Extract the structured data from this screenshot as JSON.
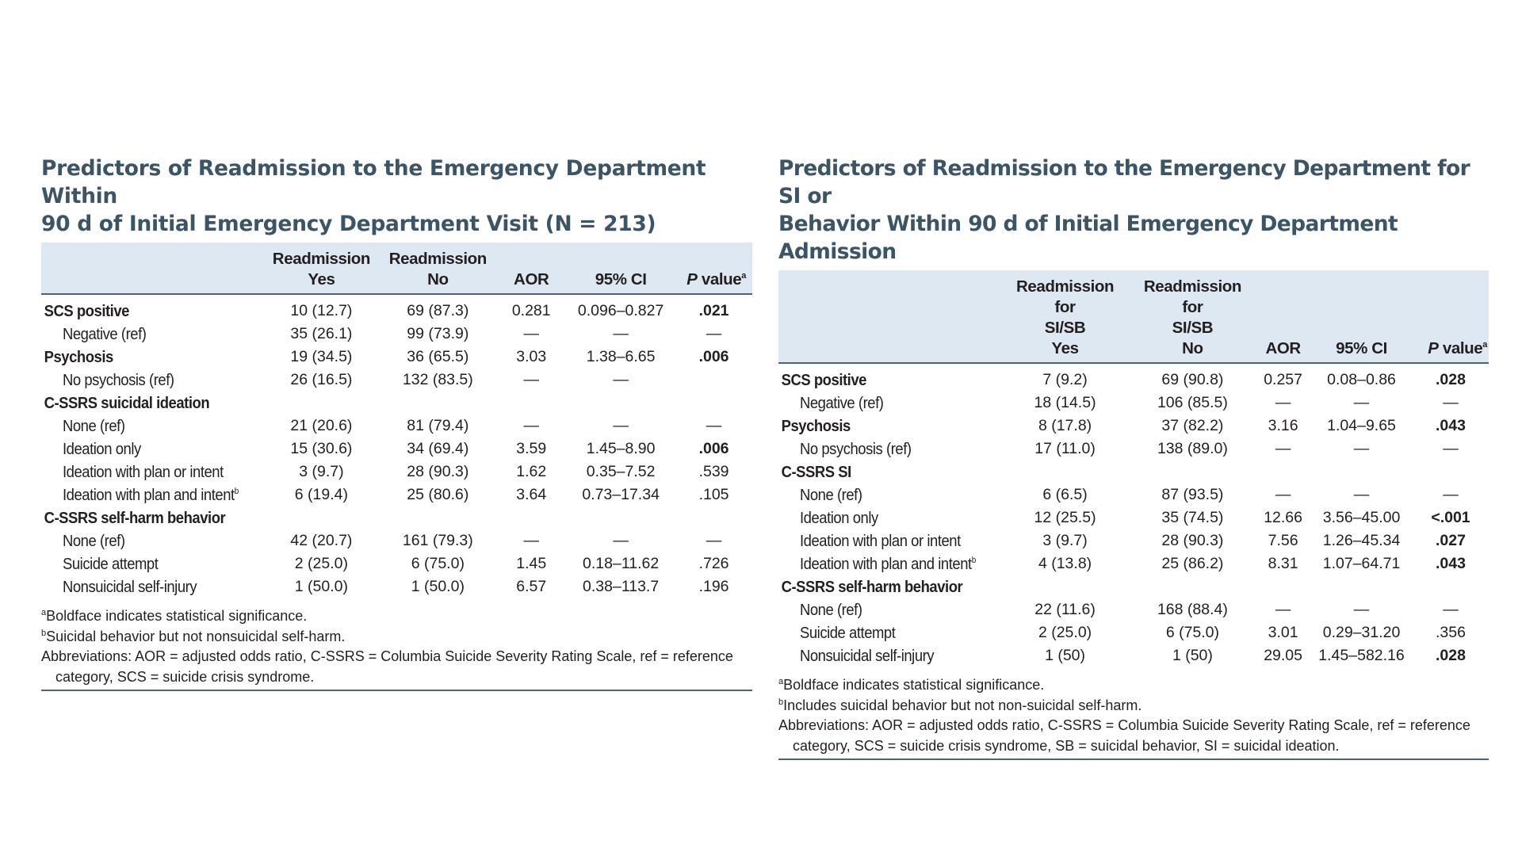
{
  "left": {
    "title_line1": "Predictors of Readmission to the Emergency Department Within",
    "title_line2": "90 d of Initial Emergency Department Visit (N = 213)",
    "headers": {
      "col1": [
        "Readmission",
        "Yes"
      ],
      "col2": [
        "Readmission",
        "No"
      ],
      "col3": "AOR",
      "col4": "95% CI",
      "col5_main": "P",
      "col5_rest": " value",
      "col5_sup": "a"
    },
    "rows": [
      {
        "label": "SCS positive",
        "kind": "head",
        "yes": "10 (12.7)",
        "no": "69 (87.3)",
        "aor": "0.281",
        "ci": "0.096–0.827",
        "p": ".021",
        "bold": true
      },
      {
        "label": "Negative (ref)",
        "kind": "sub",
        "yes": "35 (26.1)",
        "no": "99 (73.9)",
        "aor": "—",
        "ci": "—",
        "p": "—",
        "bold": false
      },
      {
        "label": "Psychosis",
        "kind": "head",
        "yes": "19 (34.5)",
        "no": "36 (65.5)",
        "aor": "3.03",
        "ci": "1.38–6.65",
        "p": ".006",
        "bold": true
      },
      {
        "label": "No psychosis (ref)",
        "kind": "sub",
        "yes": "26 (16.5)",
        "no": "132 (83.5)",
        "aor": "—",
        "ci": "—",
        "p": "",
        "bold": false
      },
      {
        "label": "C-SSRS suicidal ideation",
        "kind": "head",
        "yes": "",
        "no": "",
        "aor": "",
        "ci": "",
        "p": "",
        "bold": false
      },
      {
        "label": "None (ref)",
        "kind": "sub",
        "yes": "21 (20.6)",
        "no": "81 (79.4)",
        "aor": "—",
        "ci": "—",
        "p": "—",
        "bold": false
      },
      {
        "label": "Ideation only",
        "kind": "sub",
        "yes": "15 (30.6)",
        "no": "34 (69.4)",
        "aor": "3.59",
        "ci": "1.45–8.90",
        "p": ".006",
        "bold": true
      },
      {
        "label": "Ideation with plan or intent",
        "kind": "sub",
        "yes": "3 (9.7)",
        "no": "28 (90.3)",
        "aor": "1.62",
        "ci": "0.35–7.52",
        "p": ".539",
        "bold": false
      },
      {
        "label": "Ideation with plan and intent",
        "sup": "b",
        "kind": "sub",
        "yes": "6 (19.4)",
        "no": "25 (80.6)",
        "aor": "3.64",
        "ci": "0.73–17.34",
        "p": ".105",
        "bold": false
      },
      {
        "label": "C-SSRS self-harm behavior",
        "kind": "head",
        "yes": "",
        "no": "",
        "aor": "",
        "ci": "",
        "p": "",
        "bold": false
      },
      {
        "label": "None (ref)",
        "kind": "sub",
        "yes": "42 (20.7)",
        "no": "161 (79.3)",
        "aor": "—",
        "ci": "—",
        "p": "—",
        "bold": false
      },
      {
        "label": "Suicide attempt",
        "kind": "sub",
        "yes": "2 (25.0)",
        "no": "6 (75.0)",
        "aor": "1.45",
        "ci": "0.18–11.62",
        "p": ".726",
        "bold": false
      },
      {
        "label": "Nonsuicidal self-injury",
        "kind": "sub",
        "yes": "1 (50.0)",
        "no": "1 (50.0)",
        "aor": "6.57",
        "ci": "0.38–113.7",
        "p": ".196",
        "bold": false
      }
    ],
    "footnote_a_mark": "a",
    "footnote_a": "Boldface indicates statistical significance.",
    "footnote_b_mark": "b",
    "footnote_b": "Suicidal behavior but not nonsuicidal self-harm.",
    "abbrev_line1": "Abbreviations: AOR = adjusted odds ratio, C-SSRS = Columbia Suicide Severity Rating Scale, ref = reference",
    "abbrev_line2": "category, SCS = suicide crisis syndrome."
  },
  "right": {
    "title_line1": "Predictors of Readmission to the Emergency Department for SI or",
    "title_line2": "Behavior Within 90 d of Initial Emergency Department Admission",
    "headers": {
      "col1": [
        "Readmission for",
        "SI/SB",
        "Yes"
      ],
      "col2": [
        "Readmission for",
        "SI/SB",
        "No"
      ],
      "col3": "AOR",
      "col4": "95% CI",
      "col5_main": "P",
      "col5_rest": " value",
      "col5_sup": "a"
    },
    "rows": [
      {
        "label": "SCS positive",
        "kind": "head",
        "yes": "7 (9.2)",
        "no": "69 (90.8)",
        "aor": "0.257",
        "ci": "0.08–0.86",
        "p": ".028",
        "bold": true
      },
      {
        "label": "Negative (ref)",
        "kind": "sub",
        "yes": "18 (14.5)",
        "no": "106 (85.5)",
        "aor": "—",
        "ci": "—",
        "p": "—",
        "bold": false
      },
      {
        "label": "Psychosis",
        "kind": "head",
        "yes": "8 (17.8)",
        "no": "37 (82.2)",
        "aor": "3.16",
        "ci": "1.04–9.65",
        "p": ".043",
        "bold": true
      },
      {
        "label": "No psychosis (ref)",
        "kind": "sub",
        "yes": "17 (11.0)",
        "no": "138 (89.0)",
        "aor": "—",
        "ci": "—",
        "p": "—",
        "bold": false
      },
      {
        "label": "C-SSRS SI",
        "kind": "head",
        "yes": "",
        "no": "",
        "aor": "",
        "ci": "",
        "p": "",
        "bold": false
      },
      {
        "label": "None (ref)",
        "kind": "sub",
        "yes": "6 (6.5)",
        "no": "87 (93.5)",
        "aor": "—",
        "ci": "—",
        "p": "—",
        "bold": false
      },
      {
        "label": "Ideation only",
        "kind": "sub",
        "yes": "12 (25.5)",
        "no": "35 (74.5)",
        "aor": "12.66",
        "ci": "3.56–45.00",
        "p": "<.001",
        "bold": true
      },
      {
        "label": "Ideation with plan or intent",
        "kind": "sub",
        "yes": "3 (9.7)",
        "no": "28 (90.3)",
        "aor": "7.56",
        "ci": "1.26–45.34",
        "p": ".027",
        "bold": true
      },
      {
        "label": "Ideation with plan and intent",
        "sup": "b",
        "kind": "sub",
        "yes": "4 (13.8)",
        "no": "25 (86.2)",
        "aor": "8.31",
        "ci": "1.07–64.71",
        "p": ".043",
        "bold": true
      },
      {
        "label": "C-SSRS self-harm behavior",
        "kind": "head",
        "yes": "",
        "no": "",
        "aor": "",
        "ci": "",
        "p": "",
        "bold": false
      },
      {
        "label": "None (ref)",
        "kind": "sub",
        "yes": "22 (11.6)",
        "no": "168 (88.4)",
        "aor": "—",
        "ci": "—",
        "p": "—",
        "bold": false
      },
      {
        "label": "Suicide attempt",
        "kind": "sub",
        "yes": "2 (25.0)",
        "no": "6 (75.0)",
        "aor": "3.01",
        "ci": "0.29–31.20",
        "p": ".356",
        "bold": false
      },
      {
        "label": "Nonsuicidal self-injury",
        "kind": "sub",
        "yes": "1 (50)",
        "no": "1 (50)",
        "aor": "29.05",
        "ci": "1.45–582.16",
        "p": ".028",
        "bold": true
      }
    ],
    "footnote_a_mark": "a",
    "footnote_a": "Boldface indicates statistical significance.",
    "footnote_b_mark": "b",
    "footnote_b": "Includes suicidal behavior but not non-suicidal self-harm.",
    "abbrev_line1": "Abbreviations: AOR = adjusted odds ratio, C-SSRS = Columbia Suicide Severity Rating Scale, ref = reference",
    "abbrev_line2": "category, SCS = suicide crisis syndrome, SB = suicidal behavior, SI = suicidal ideation."
  }
}
